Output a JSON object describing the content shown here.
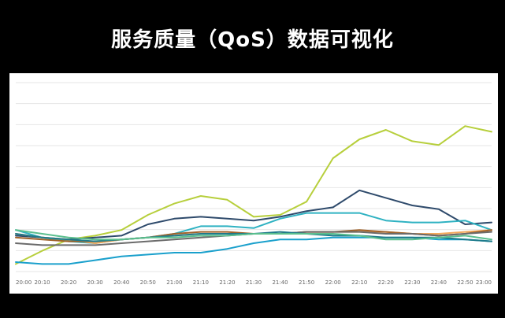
{
  "title": "服务质量（QoS）数据可视化",
  "chart_data": {
    "type": "line",
    "title": "",
    "xlabel": "",
    "ylabel": "",
    "ylim": [
      0,
      100
    ],
    "grid": true,
    "x": [
      "20:00",
      "20:10",
      "20:20",
      "20:30",
      "20:40",
      "20:50",
      "21:00",
      "21:10",
      "21:20",
      "21:30",
      "21:40",
      "21:50",
      "22:00",
      "22:10",
      "22:20",
      "22:30",
      "22:40",
      "22:50",
      "23:00"
    ],
    "series": [
      {
        "color": "#b7cf3c",
        "values": [
          4,
          11,
          17,
          19,
          22,
          30,
          36,
          40,
          38,
          29,
          30,
          37,
          60,
          70,
          75,
          69,
          67,
          77,
          74
        ]
      },
      {
        "color": "#2e4a6b",
        "values": [
          19,
          18,
          17,
          18,
          19,
          25,
          28,
          29,
          28,
          27,
          29,
          32,
          34,
          43,
          39,
          35,
          33,
          25,
          26
        ]
      },
      {
        "color": "#2fb2c2",
        "values": [
          22,
          18,
          16,
          15,
          17,
          18,
          20,
          24,
          24,
          23,
          28,
          31,
          31,
          31,
          27,
          26,
          26,
          27,
          22
        ]
      },
      {
        "color": "#1aa0cc",
        "values": [
          5,
          4,
          4,
          6,
          8,
          9,
          10,
          10,
          12,
          15,
          17,
          17,
          18,
          18,
          18,
          18,
          17,
          17,
          16
        ]
      },
      {
        "color": "#f4a85a",
        "values": [
          20,
          18,
          17,
          15,
          17,
          18,
          19,
          20,
          20,
          20,
          20,
          21,
          21,
          21,
          21,
          20,
          20,
          21,
          22
        ]
      },
      {
        "color": "#a0622a",
        "values": [
          18,
          17,
          16,
          16,
          17,
          18,
          20,
          21,
          21,
          20,
          20,
          21,
          21,
          22,
          21,
          20,
          19,
          20,
          22
        ]
      },
      {
        "color": "#6b6b6b",
        "values": [
          15,
          14,
          14,
          14,
          15,
          16,
          17,
          18,
          19,
          20,
          20,
          21,
          21,
          21,
          20,
          20,
          19,
          20,
          21
        ]
      },
      {
        "color": "#1e7a8a",
        "values": [
          20,
          18,
          17,
          16,
          17,
          18,
          19,
          20,
          20,
          20,
          21,
          20,
          19,
          19,
          18,
          18,
          18,
          17,
          16
        ]
      },
      {
        "color": "#5bbf8e",
        "values": [
          22,
          20,
          18,
          17,
          17,
          18,
          18,
          19,
          19,
          20,
          20,
          20,
          20,
          19,
          17,
          17,
          18,
          19,
          17
        ]
      }
    ]
  }
}
